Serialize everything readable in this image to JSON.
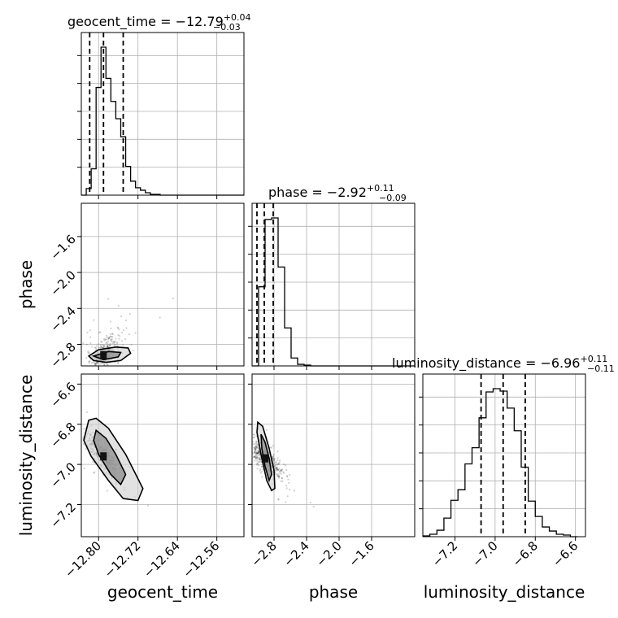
{
  "panels": {
    "diag": [
      {
        "title_main": "geocent_time = −12.79",
        "title_sup": "+0.04",
        "title_sub": "−0.03"
      },
      {
        "title_main": "phase = −2.92",
        "title_sup": "+0.11",
        "title_sub": "−0.09"
      },
      {
        "title_main": "luminosity_distance = −6.96",
        "title_sup": "+0.11",
        "title_sub": "−0.11"
      }
    ]
  },
  "colors": {
    "line": "#000000",
    "grid": "#b0b0b0",
    "points": "#000000"
  },
  "chart_data": {
    "type": "corner",
    "parameters": [
      {
        "name": "geocent_time",
        "range": [
          -12.835,
          -12.505
        ],
        "ticks": [
          -12.8,
          -12.72,
          -12.64,
          -12.56
        ],
        "tick_labels": [
          "−12.80",
          "−12.72",
          "−12.64",
          "−12.56"
        ]
      },
      {
        "name": "phase",
        "range": [
          -3.07,
          -1.07
        ],
        "ticks": [
          -2.8,
          -2.4,
          -2.0,
          -1.6
        ],
        "tick_labels": [
          "−2.8",
          "−2.4",
          "−2.0",
          "−1.6"
        ]
      },
      {
        "name": "luminosity_distance",
        "range": [
          -7.36,
          -6.55
        ],
        "ticks": [
          -7.2,
          -7.0,
          -6.8,
          -6.6
        ],
        "tick_labels": [
          "−7.2",
          "−7.0",
          "−6.8",
          "−6.6"
        ]
      }
    ],
    "phase_yaxis": {
      "range": [
        -3.04,
        -1.23
      ],
      "ticks": [
        -2.8,
        -2.4,
        -2.0,
        -1.6
      ],
      "tick_labels": [
        "−2.8",
        "−2.4",
        "−2.0",
        "−1.6"
      ]
    },
    "luminosity_distance_yaxis": {
      "range": [
        -7.36,
        -6.55
      ],
      "ticks": [
        -7.2,
        -7.0,
        -6.8,
        -6.6
      ],
      "tick_labels": [
        "−7.2",
        "−7.0",
        "−6.8",
        "−6.6"
      ]
    },
    "histograms": [
      {
        "parameter": "geocent_time",
        "edges": [
          -12.835,
          -12.825,
          -12.815,
          -12.805,
          -12.795,
          -12.785,
          -12.775,
          -12.765,
          -12.755,
          -12.745,
          -12.735,
          -12.725,
          -12.715,
          -12.705,
          -12.695,
          -12.685,
          -12.675,
          -12.665,
          -12.655,
          -12.645,
          -12.635,
          -12.625,
          -12.615,
          -12.605,
          -12.595,
          -12.585,
          -12.575,
          -12.565,
          -12.555,
          -12.545,
          -12.535,
          -12.525,
          -12.515,
          -12.505
        ],
        "counts": [
          0,
          8,
          32,
          131,
          180,
          142,
          114,
          93,
          71,
          35,
          17,
          9,
          6,
          3,
          1,
          1,
          0,
          0,
          0,
          0,
          0,
          0,
          0,
          0,
          0,
          0,
          0,
          0,
          0,
          0,
          0,
          0,
          0
        ],
        "quantiles": [
          -12.818,
          -12.79,
          -12.75
        ]
      },
      {
        "parameter": "phase",
        "edges": [
          -3.07,
          -2.99,
          -2.91,
          -2.83,
          -2.75,
          -2.67,
          -2.59,
          -2.51,
          -2.43,
          -2.35,
          -2.27,
          -2.19,
          -2.11,
          -2.03,
          -1.95,
          -1.87,
          -1.79,
          -1.71,
          -1.63,
          -1.55,
          -1.47,
          -1.39,
          -1.31,
          -1.23,
          -1.15,
          -1.07
        ],
        "counts": [
          0,
          100,
          185,
          187,
          125,
          48,
          10,
          2,
          1,
          0,
          0,
          0,
          0,
          0,
          0,
          0,
          0,
          0,
          0,
          0,
          0,
          0,
          0,
          0,
          0
        ],
        "quantiles": [
          -3.01,
          -2.92,
          -2.81
        ]
      },
      {
        "parameter": "luminosity_distance",
        "edges": [
          -7.36,
          -7.325,
          -7.29,
          -7.255,
          -7.22,
          -7.185,
          -7.15,
          -7.115,
          -7.08,
          -7.045,
          -7.01,
          -6.975,
          -6.94,
          -6.905,
          -6.87,
          -6.835,
          -6.8,
          -6.765,
          -6.73,
          -6.695,
          -6.66,
          -6.625,
          -6.59
        ],
        "counts": [
          1,
          3,
          8,
          23,
          45,
          58,
          90,
          110,
          147,
          179,
          183,
          180,
          159,
          131,
          86,
          44,
          25,
          12,
          7,
          3,
          2,
          0,
          0
        ],
        "quantiles": [
          -7.07,
          -6.96,
          -6.85
        ]
      }
    ],
    "contour_plots": [
      {
        "x": "geocent_time",
        "y": "phase",
        "high_density_center": [
          -12.79,
          -2.92
        ],
        "outer_contour": [
          [
            -12.82,
            -2.93
          ],
          [
            -12.81,
            -2.98
          ],
          [
            -12.785,
            -3.0
          ],
          [
            -12.755,
            -2.98
          ],
          [
            -12.735,
            -2.9
          ],
          [
            -12.74,
            -2.84
          ],
          [
            -12.765,
            -2.83
          ],
          [
            -12.8,
            -2.86
          ]
        ],
        "inner_contour": [
          [
            -12.81,
            -2.93
          ],
          [
            -12.79,
            -2.97
          ],
          [
            -12.76,
            -2.94
          ],
          [
            -12.755,
            -2.89
          ],
          [
            -12.78,
            -2.88
          ]
        ]
      },
      {
        "x": "geocent_time",
        "y": "luminosity_distance",
        "high_density_center": [
          -12.79,
          -6.96
        ],
        "outer_contour": [
          [
            -12.82,
            -6.78
          ],
          [
            -12.805,
            -6.77
          ],
          [
            -12.78,
            -6.82
          ],
          [
            -12.745,
            -6.95
          ],
          [
            -12.71,
            -7.12
          ],
          [
            -12.72,
            -7.18
          ],
          [
            -12.75,
            -7.17
          ],
          [
            -12.78,
            -7.08
          ],
          [
            -12.815,
            -6.96
          ],
          [
            -12.83,
            -6.88
          ]
        ],
        "inner_contour": [
          [
            -12.805,
            -6.83
          ],
          [
            -12.785,
            -6.87
          ],
          [
            -12.765,
            -6.95
          ],
          [
            -12.745,
            -7.05
          ],
          [
            -12.755,
            -7.1
          ],
          [
            -12.775,
            -7.05
          ],
          [
            -12.8,
            -6.95
          ],
          [
            -12.81,
            -6.88
          ]
        ]
      },
      {
        "x": "phase",
        "y": "luminosity_distance",
        "high_density_center": [
          -2.91,
          -6.97
        ],
        "outer_contour": [
          [
            -3.0,
            -6.79
          ],
          [
            -2.94,
            -6.81
          ],
          [
            -2.86,
            -6.92
          ],
          [
            -2.8,
            -7.03
          ],
          [
            -2.79,
            -7.12
          ],
          [
            -2.83,
            -7.13
          ],
          [
            -2.89,
            -7.08
          ],
          [
            -2.96,
            -6.95
          ],
          [
            -3.01,
            -6.84
          ]
        ],
        "inner_contour": [
          [
            -2.96,
            -6.85
          ],
          [
            -2.91,
            -6.89
          ],
          [
            -2.86,
            -6.97
          ],
          [
            -2.83,
            -7.05
          ],
          [
            -2.86,
            -7.08
          ],
          [
            -2.91,
            -7.01
          ],
          [
            -2.95,
            -6.92
          ]
        ]
      }
    ]
  }
}
